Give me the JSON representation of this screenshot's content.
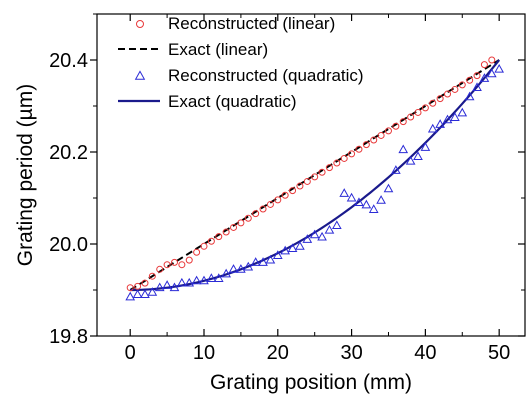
{
  "chart_data": {
    "type": "line",
    "xlabel": "Grating position (mm)",
    "ylabel": "Grating period (µm)",
    "xlim": [
      -4.5,
      53.5
    ],
    "ylim": [
      19.8,
      20.5
    ],
    "xticks": [
      0,
      10,
      20,
      30,
      40,
      50
    ],
    "xtick_labels": [
      "0",
      "10",
      "20",
      "30",
      "40",
      "50"
    ],
    "yticks": [
      19.8,
      20.0,
      20.2,
      20.4
    ],
    "ytick_labels": [
      "19.8",
      "20.0",
      "20.2",
      "20.4"
    ],
    "grid": false,
    "legend_position": "top-left",
    "series": [
      {
        "name": "Reconstructed (linear)",
        "style": "circle-markers",
        "color": "#e8393a",
        "x": [
          0,
          1,
          2,
          3,
          4,
          5,
          6,
          7,
          8,
          9,
          10,
          11,
          12,
          13,
          14,
          15,
          16,
          17,
          18,
          19,
          20,
          21,
          22,
          23,
          24,
          25,
          26,
          27,
          28,
          29,
          30,
          31,
          32,
          33,
          34,
          35,
          36,
          37,
          38,
          39,
          40,
          41,
          42,
          43,
          44,
          45,
          46,
          47,
          48,
          49
        ],
        "y": [
          19.905,
          19.908,
          19.915,
          19.93,
          19.945,
          19.955,
          19.96,
          19.955,
          19.965,
          19.982,
          19.995,
          20.006,
          20.016,
          20.026,
          20.036,
          20.046,
          20.056,
          20.066,
          20.076,
          20.086,
          20.096,
          20.106,
          20.116,
          20.126,
          20.136,
          20.146,
          20.156,
          20.166,
          20.176,
          20.186,
          20.196,
          20.206,
          20.216,
          20.226,
          20.236,
          20.246,
          20.256,
          20.266,
          20.276,
          20.286,
          20.296,
          20.306,
          20.316,
          20.326,
          20.336,
          20.346,
          20.356,
          20.366,
          20.39,
          20.4
        ]
      },
      {
        "name": "Exact (linear)",
        "style": "dashed-line",
        "color": "#000000",
        "x": [
          0,
          50
        ],
        "y": [
          19.9,
          20.4
        ]
      },
      {
        "name": "Reconstructed (quadratic)",
        "style": "triangle-markers",
        "color": "#2b2bd6",
        "x": [
          0,
          1,
          2,
          3,
          4,
          5,
          6,
          7,
          8,
          9,
          10,
          11,
          12,
          13,
          14,
          15,
          16,
          17,
          18,
          19,
          20,
          21,
          22,
          23,
          24,
          25,
          26,
          27,
          28,
          29,
          30,
          31,
          32,
          33,
          34,
          35,
          36,
          37,
          38,
          39,
          40,
          41,
          42,
          43,
          44,
          45,
          46,
          47,
          48,
          49,
          50
        ],
        "y": [
          19.885,
          19.89,
          19.89,
          19.895,
          19.905,
          19.91,
          19.905,
          19.915,
          19.915,
          19.92,
          19.92,
          19.925,
          19.925,
          19.935,
          19.945,
          19.945,
          19.95,
          19.96,
          19.96,
          19.965,
          19.975,
          19.985,
          19.99,
          19.995,
          20.01,
          20.02,
          20.015,
          20.03,
          20.04,
          20.11,
          20.1,
          20.09,
          20.085,
          20.075,
          20.095,
          20.12,
          20.16,
          20.205,
          20.18,
          20.19,
          20.21,
          20.25,
          20.26,
          20.27,
          20.275,
          20.285,
          20.32,
          20.34,
          20.36,
          20.37,
          20.38
        ]
      },
      {
        "name": "Exact (quadratic)",
        "style": "solid-line",
        "color": "#1a1a8c",
        "function": "y = 19.9 + 0.0002*x^2"
      }
    ]
  }
}
